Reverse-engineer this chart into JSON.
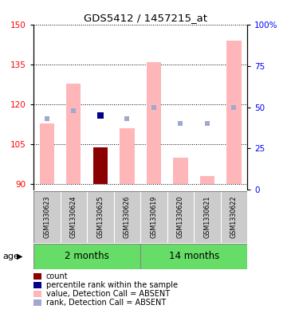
{
  "title": "GDS5412 / 1457215_at",
  "samples": [
    "GSM1330623",
    "GSM1330624",
    "GSM1330625",
    "GSM1330626",
    "GSM1330619",
    "GSM1330620",
    "GSM1330621",
    "GSM1330622"
  ],
  "ylim_left": [
    88,
    150
  ],
  "ylim_right": [
    0,
    100
  ],
  "yticks_left": [
    90,
    105,
    120,
    135,
    150
  ],
  "yticks_right": [
    0,
    25,
    50,
    75,
    100
  ],
  "ytick_right_labels": [
    "0",
    "25",
    "50",
    "75",
    "100%"
  ],
  "values_absent": [
    113.0,
    128.0,
    null,
    111.0,
    136.0,
    100.0,
    93.0,
    144.0
  ],
  "ranks_absent_pct": [
    43,
    48,
    null,
    43,
    50,
    40,
    40,
    50
  ],
  "count_value": [
    null,
    null,
    104.0,
    null,
    null,
    null,
    null,
    null
  ],
  "percentile_rank_pct": [
    null,
    null,
    45,
    null,
    null,
    null,
    null,
    null
  ],
  "bar_bottom": 90,
  "pink_color": "#FFB6B8",
  "count_color": "#8B0000",
  "percentile_color": "#00008B",
  "rank_color": "#A0A8D0",
  "group1_color": "#66DD66",
  "group2_color": "#66DD66",
  "group1_label": "2 months",
  "group2_label": "14 months",
  "legend_items": [
    {
      "label": "count",
      "color": "#8B0000"
    },
    {
      "label": "percentile rank within the sample",
      "color": "#00008B"
    },
    {
      "label": "value, Detection Call = ABSENT",
      "color": "#FFB6B8"
    },
    {
      "label": "rank, Detection Call = ABSENT",
      "color": "#A0A8D0"
    }
  ]
}
